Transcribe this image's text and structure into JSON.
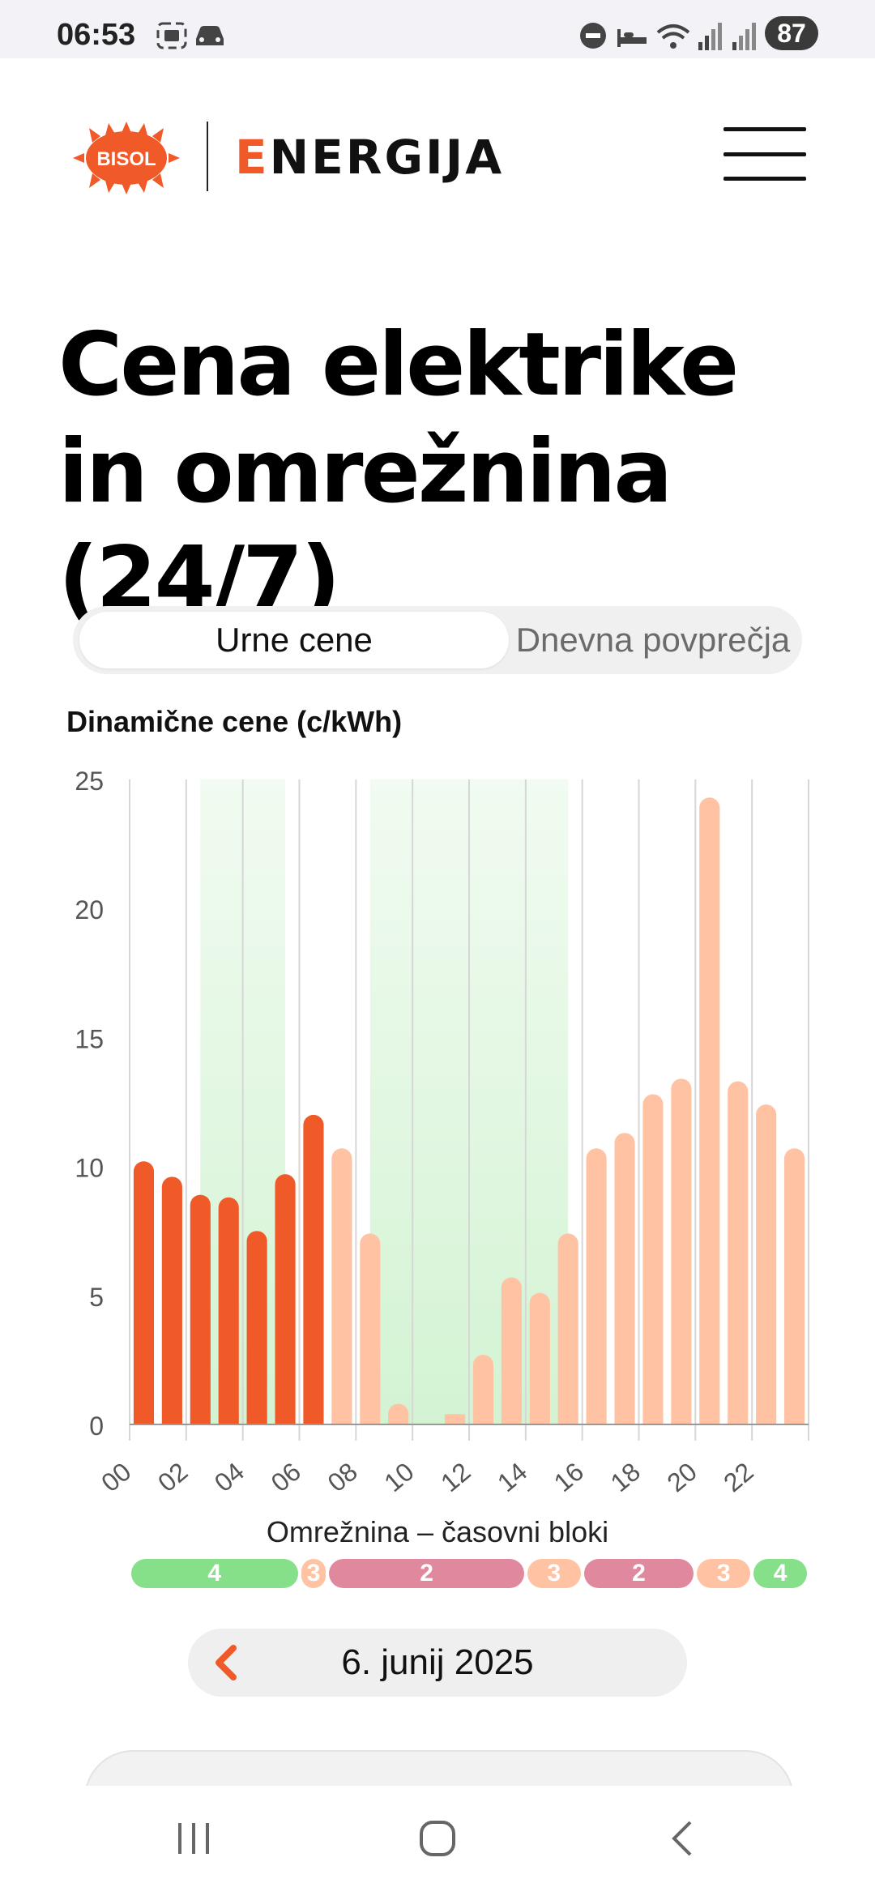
{
  "status_bar": {
    "time": "06:53",
    "battery": "87",
    "icons": [
      "screenshot-icon",
      "car-icon",
      "dnd-icon",
      "sleep-icon",
      "wifi-icon",
      "signal-icon-1",
      "signal-icon-2"
    ]
  },
  "header": {
    "logo_badge": "BISOL",
    "logo_text_first": "E",
    "logo_text_rest": "NERGIJA",
    "menu_icon": "hamburger-icon"
  },
  "page": {
    "title": "Cena elektrike in omrežnina (24/7)"
  },
  "toggle": {
    "options": [
      "Urne cene",
      "Dnevna povprečja"
    ],
    "selected": "Urne cene"
  },
  "chart_data": {
    "type": "bar",
    "title": "Dinamične cene (c/kWh)",
    "x": [
      0,
      1,
      2,
      3,
      4,
      5,
      6,
      7,
      8,
      9,
      10,
      11,
      12,
      13,
      14,
      15,
      16,
      17,
      18,
      19,
      20,
      21,
      22,
      23
    ],
    "x_tick_labels": [
      "00",
      "02",
      "04",
      "06",
      "08",
      "10",
      "12",
      "14",
      "16",
      "18",
      "20",
      "22"
    ],
    "values": [
      10.2,
      9.6,
      8.9,
      8.8,
      7.5,
      9.7,
      12.0,
      10.7,
      7.4,
      0.8,
      0.0,
      0.4,
      2.7,
      5.7,
      5.1,
      7.4,
      10.7,
      11.3,
      12.8,
      13.4,
      24.3,
      13.3,
      12.4,
      10.7
    ],
    "past_hours": 7,
    "ylim": [
      0,
      25
    ],
    "yticks": [
      0,
      5,
      10,
      15,
      20,
      25
    ],
    "highlight_ranges": [
      [
        2,
        5
      ],
      [
        8,
        15
      ]
    ],
    "colors": {
      "past": "#f05a28",
      "future": "#ffc3a3",
      "highlight": "#c8f0c8"
    }
  },
  "grid_blocks": {
    "title": "Omrežnina – časovni bloki",
    "blocks": [
      {
        "label": "4",
        "hours": 6,
        "color": "#86e08a"
      },
      {
        "label": "3",
        "hours": 1,
        "color": "#ffc3a3"
      },
      {
        "label": "2",
        "hours": 7,
        "color": "#e0889e"
      },
      {
        "label": "3",
        "hours": 2,
        "color": "#ffc3a3"
      },
      {
        "label": "2",
        "hours": 4,
        "color": "#e0889e"
      },
      {
        "label": "3",
        "hours": 2,
        "color": "#ffc3a3"
      },
      {
        "label": "4",
        "hours": 2,
        "color": "#86e08a"
      }
    ]
  },
  "date_nav": {
    "date": "6. junij 2025",
    "prev_icon": "chevron-left-icon"
  },
  "nav_bar": {
    "icons": [
      "recent-apps-icon",
      "home-icon",
      "back-icon"
    ]
  }
}
